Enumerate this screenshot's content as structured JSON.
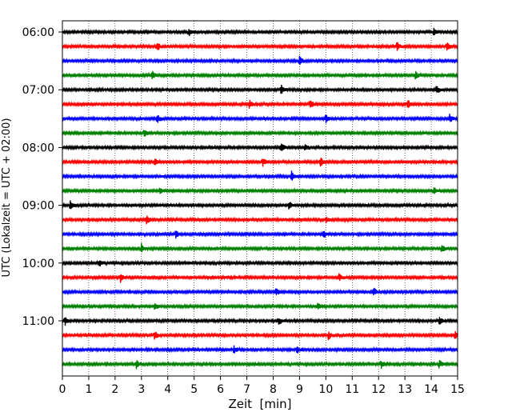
{
  "chart_data": {
    "type": "line",
    "subtype": "helicorder",
    "xlabel": "Zeit  [min]",
    "ylabel": "UTC (Lokalzeit = UTC + 02:00)",
    "xlim": [
      0,
      15
    ],
    "x_ticks": [
      "0",
      "1",
      "2",
      "3",
      "4",
      "5",
      "6",
      "7",
      "8",
      "9",
      "10",
      "11",
      "12",
      "13",
      "14",
      "15"
    ],
    "y_tick_labels": [
      "06:00",
      "07:00",
      "08:00",
      "09:00",
      "10:00",
      "11:00"
    ],
    "vertical_grid": "dotted, every minute",
    "trace_colors": [
      "#000000",
      "#ff0000",
      "#0000ff",
      "#008000"
    ],
    "traces": [
      {
        "start": "06:00",
        "events": [
          4.8,
          14.1
        ]
      },
      {
        "start": "06:15",
        "events": [
          3.6,
          12.7,
          14.6
        ]
      },
      {
        "start": "06:30",
        "events": [
          9.0
        ]
      },
      {
        "start": "06:45",
        "events": [
          3.4,
          13.4
        ]
      },
      {
        "start": "07:00",
        "events": [
          8.3,
          14.2
        ]
      },
      {
        "start": "07:15",
        "events": [
          7.1,
          9.4,
          13.1
        ]
      },
      {
        "start": "07:30",
        "events": [
          3.6,
          10.0,
          14.7
        ]
      },
      {
        "start": "07:45",
        "events": [
          3.1
        ]
      },
      {
        "start": "08:00",
        "events": [
          8.3,
          9.2
        ]
      },
      {
        "start": "08:15",
        "events": [
          3.5,
          7.6,
          9.8
        ]
      },
      {
        "start": "08:30",
        "events": [
          8.7
        ]
      },
      {
        "start": "08:45",
        "events": [
          3.7,
          14.1
        ]
      },
      {
        "start": "09:00",
        "events": [
          0.3,
          8.6
        ]
      },
      {
        "start": "09:15",
        "events": [
          3.2,
          10.0
        ]
      },
      {
        "start": "09:30",
        "events": [
          4.3,
          9.9
        ]
      },
      {
        "start": "09:45",
        "events": [
          3.0,
          14.4
        ]
      },
      {
        "start": "10:00",
        "events": [
          1.4
        ]
      },
      {
        "start": "10:15",
        "events": [
          2.2,
          10.5
        ]
      },
      {
        "start": "10:30",
        "events": [
          8.1,
          11.8
        ]
      },
      {
        "start": "10:45",
        "events": [
          3.5,
          9.7
        ]
      },
      {
        "start": "11:00",
        "events": [
          0.1,
          8.2,
          14.3
        ]
      },
      {
        "start": "11:15",
        "events": [
          3.5,
          10.1,
          14.9
        ]
      },
      {
        "start": "11:30",
        "events": [
          6.5,
          8.9
        ]
      },
      {
        "start": "11:45",
        "events": [
          2.8,
          12.1,
          14.3
        ]
      }
    ]
  }
}
